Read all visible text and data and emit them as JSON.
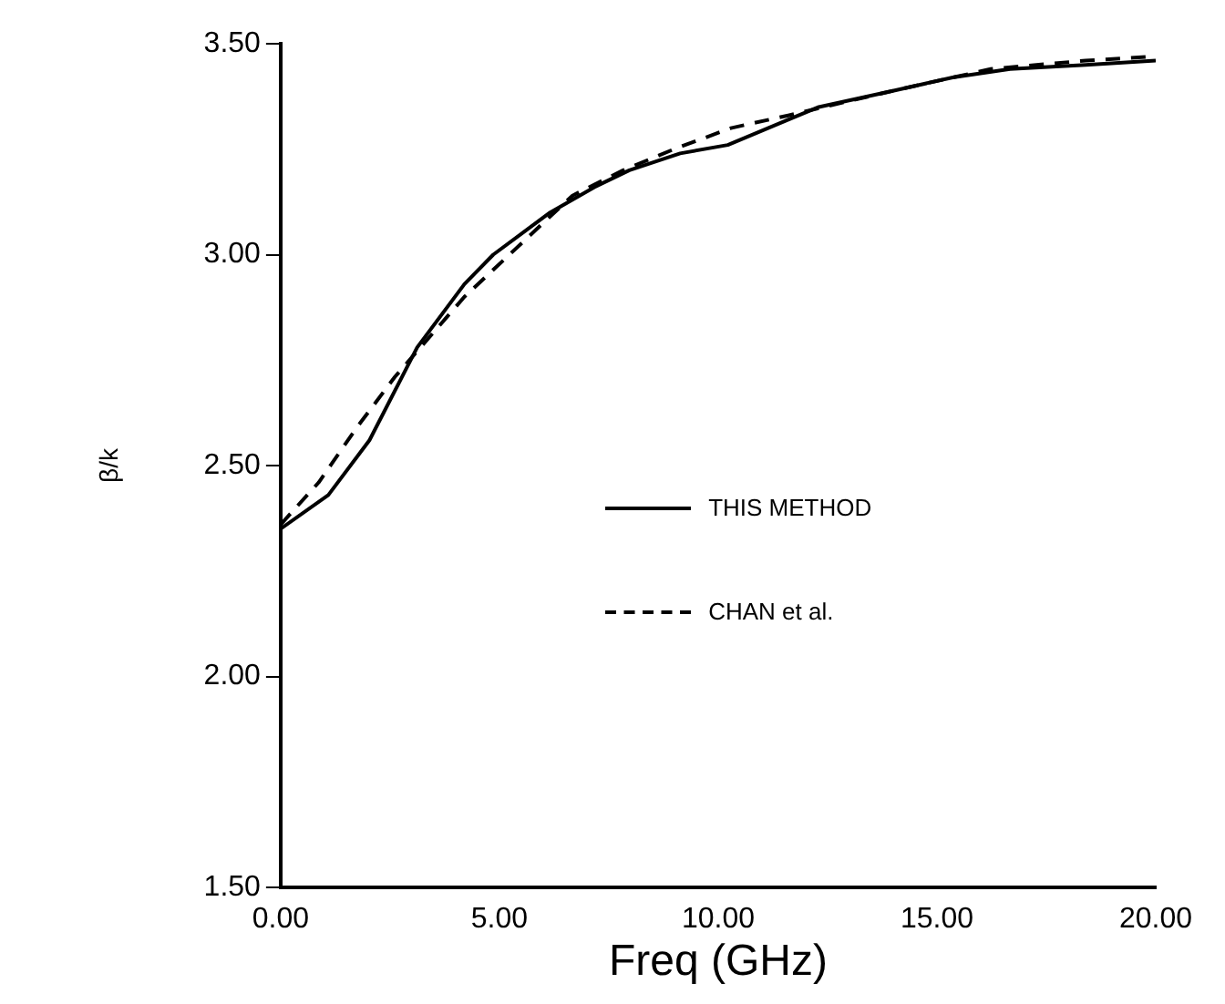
{
  "chart_data": {
    "type": "line",
    "xlabel": "Freq (GHz)",
    "ylabel": "β/k",
    "xlim": [
      0,
      20
    ],
    "xticks": [
      {
        "value": 0,
        "label": "0.00"
      },
      {
        "value": 5,
        "label": "5.00"
      },
      {
        "value": 10,
        "label": "10.00"
      },
      {
        "value": 15,
        "label": "15.00"
      },
      {
        "value": 20,
        "label": "20.00"
      }
    ],
    "ylim": [
      1.5,
      3.5
    ],
    "yticks": [
      {
        "value": 1.5,
        "label": "1.50"
      },
      {
        "value": 2,
        "label": "2.00"
      },
      {
        "value": 2.5,
        "label": "2.50"
      },
      {
        "value": 3,
        "label": "3.00"
      },
      {
        "value": 3.5,
        "label": "3.50"
      }
    ],
    "grid": false,
    "legend": "center",
    "marker": "none",
    "series": [
      {
        "name": "THIS METHOD",
        "color": "#000000",
        "line_style": "solid",
        "x": [
          0,
          1.09,
          2.03,
          3.12,
          4.2,
          4.86,
          6.16,
          7.17,
          7.97,
          9.13,
          10.22,
          11.6,
          12.3,
          14.06,
          15.36,
          16.67,
          18.4,
          20
        ],
        "values": [
          2.35,
          2.43,
          2.56,
          2.78,
          2.93,
          3.0,
          3.1,
          3.16,
          3.2,
          3.24,
          3.26,
          3.32,
          3.35,
          3.39,
          3.42,
          3.44,
          3.45,
          3.46
        ]
      },
      {
        "name": "CHAN et al.",
        "color": "#000000",
        "line_style": "dashed",
        "x": [
          0,
          0.87,
          1.74,
          2.61,
          4.2,
          6.67,
          7.83,
          8.99,
          10.29,
          11.6,
          14.06,
          16.23,
          18.4,
          20
        ],
        "values": [
          2.36,
          2.46,
          2.59,
          2.71,
          2.9,
          3.14,
          3.2,
          3.25,
          3.3,
          3.33,
          3.39,
          3.44,
          3.46,
          3.47
        ]
      }
    ]
  }
}
